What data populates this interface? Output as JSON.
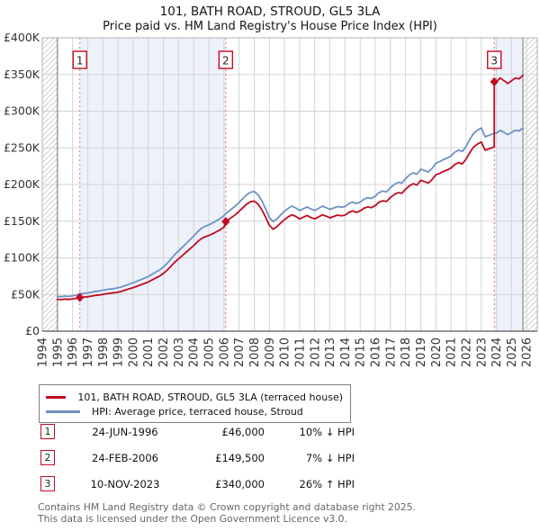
{
  "title": "101, BATH ROAD, STROUD, GL5 3LA",
  "subtitle": "Price paid vs. HM Land Registry's House Price Index (HPI)",
  "legend": {
    "items": [
      {
        "label": "101, BATH ROAD, STROUD, GL5 3LA (terraced house)",
        "color": "#c00b20"
      },
      {
        "label": "HPI: Average price, terraced house, Stroud",
        "color": "#6d92c4"
      }
    ]
  },
  "table": {
    "rows": [
      {
        "num": "1",
        "date": "24-JUN-1996",
        "price": "£46,000",
        "delta": "10% ↓ HPI"
      },
      {
        "num": "2",
        "date": "24-FEB-2006",
        "price": "£149,500",
        "delta": "7% ↓ HPI"
      },
      {
        "num": "3",
        "date": "10-NOV-2023",
        "price": "£340,000",
        "delta": "26% ↑ HPI"
      }
    ]
  },
  "footer": {
    "line1": "Contains HM Land Registry data © Crown copyright and database right 2025.",
    "line2": "This data is licensed under the Open Government Licence v3.0."
  },
  "chart_data": {
    "type": "line",
    "title": "101, BATH ROAD, STROUD, GL5 3LA — Price paid vs. HPI",
    "units": "GBP thousands",
    "xlim": [
      1994,
      2026.7
    ],
    "ylim": [
      0,
      400
    ],
    "data_start": 1995.0,
    "data_end": 2025.75,
    "grid": true,
    "x_ticks": [
      1994,
      1995,
      1996,
      1997,
      1998,
      1999,
      2000,
      2001,
      2002,
      2003,
      2004,
      2005,
      2006,
      2007,
      2008,
      2009,
      2010,
      2011,
      2012,
      2013,
      2014,
      2015,
      2016,
      2017,
      2018,
      2019,
      2020,
      2021,
      2022,
      2023,
      2024,
      2025,
      2026
    ],
    "y_ticks": [
      {
        "v": 0,
        "label": "£0"
      },
      {
        "v": 50,
        "label": "£50K"
      },
      {
        "v": 100,
        "label": "£100K"
      },
      {
        "v": 150,
        "label": "£150K"
      },
      {
        "v": 200,
        "label": "£200K"
      },
      {
        "v": 250,
        "label": "£250K"
      },
      {
        "v": 300,
        "label": "£300K"
      },
      {
        "v": 350,
        "label": "£350K"
      },
      {
        "v": 400,
        "label": "£400K"
      }
    ],
    "shaded_bands": [
      [
        1996.48,
        2006.12
      ],
      [
        2023.86,
        2025.75
      ]
    ],
    "colors": {
      "red": "#c00b20",
      "blue": "#6d92c4",
      "band": "#edf1fa",
      "dashed": "#e87272",
      "grid": "#d4d4d4",
      "border": "#b3b3b3",
      "boundary": "#777777",
      "hatch": "#cccccc",
      "axis": "#555555",
      "tick_text": "#333333"
    },
    "sales_markers": [
      {
        "label": "1",
        "year": 1996.48,
        "value": 46,
        "date": "24-JUN-1996",
        "note": "10% below HPI"
      },
      {
        "label": "2",
        "year": 2006.12,
        "value": 149.5,
        "date": "24-FEB-2006",
        "note": "7% below HPI"
      },
      {
        "label": "3",
        "year": 2023.86,
        "value": 340,
        "date": "10-NOV-2023",
        "note": "26% above HPI"
      }
    ],
    "series": [
      {
        "id": "hpi-line",
        "name": "HPI: Average price, terraced house, Stroud",
        "color": "#6d92c4",
        "points": [
          [
            1995.0,
            47.5
          ],
          [
            1995.25,
            47.0
          ],
          [
            1995.5,
            47.8
          ],
          [
            1995.75,
            47.4
          ],
          [
            1996.0,
            48.2
          ],
          [
            1996.25,
            49.0
          ],
          [
            1996.48,
            51.1
          ],
          [
            1996.75,
            51.6
          ],
          [
            1997.0,
            52.2
          ],
          [
            1997.25,
            53.2
          ],
          [
            1997.5,
            54.2
          ],
          [
            1997.75,
            54.8
          ],
          [
            1998.0,
            55.8
          ],
          [
            1998.25,
            56.8
          ],
          [
            1998.5,
            57.6
          ],
          [
            1998.75,
            58.2
          ],
          [
            1999.0,
            59.2
          ],
          [
            1999.25,
            60.5
          ],
          [
            1999.5,
            62.5
          ],
          [
            1999.75,
            64.2
          ],
          [
            2000.0,
            66.0
          ],
          [
            2000.25,
            68.0
          ],
          [
            2000.5,
            70.2
          ],
          [
            2000.75,
            72.3
          ],
          [
            2001.0,
            74.5
          ],
          [
            2001.25,
            77.5
          ],
          [
            2001.5,
            80.5
          ],
          [
            2001.75,
            83.5
          ],
          [
            2002.0,
            87.5
          ],
          [
            2002.25,
            92.5
          ],
          [
            2002.5,
            98.5
          ],
          [
            2002.75,
            104.5
          ],
          [
            2003.0,
            109.5
          ],
          [
            2003.25,
            114.5
          ],
          [
            2003.5,
            119.5
          ],
          [
            2003.75,
            124.5
          ],
          [
            2004.0,
            129.5
          ],
          [
            2004.25,
            135.5
          ],
          [
            2004.5,
            140.0
          ],
          [
            2004.75,
            143.0
          ],
          [
            2005.0,
            145.0
          ],
          [
            2005.25,
            147.5
          ],
          [
            2005.5,
            150.5
          ],
          [
            2005.75,
            153.5
          ],
          [
            2006.0,
            157.5
          ],
          [
            2006.12,
            160.5
          ],
          [
            2006.25,
            162.5
          ],
          [
            2006.5,
            166.5
          ],
          [
            2006.75,
            170.5
          ],
          [
            2007.0,
            175.5
          ],
          [
            2007.25,
            181.0
          ],
          [
            2007.5,
            186.0
          ],
          [
            2007.75,
            189.5
          ],
          [
            2008.0,
            190.5
          ],
          [
            2008.25,
            186.0
          ],
          [
            2008.5,
            178.0
          ],
          [
            2008.75,
            167.0
          ],
          [
            2009.0,
            155.0
          ],
          [
            2009.25,
            149.5
          ],
          [
            2009.5,
            153.0
          ],
          [
            2009.75,
            158.5
          ],
          [
            2010.0,
            163.5
          ],
          [
            2010.25,
            167.5
          ],
          [
            2010.5,
            170.5
          ],
          [
            2010.75,
            168.0
          ],
          [
            2011.0,
            164.5
          ],
          [
            2011.25,
            167.0
          ],
          [
            2011.5,
            169.5
          ],
          [
            2011.75,
            166.5
          ],
          [
            2012.0,
            164.5
          ],
          [
            2012.25,
            167.5
          ],
          [
            2012.5,
            170.5
          ],
          [
            2012.75,
            168.5
          ],
          [
            2013.0,
            166.0
          ],
          [
            2013.25,
            168.0
          ],
          [
            2013.5,
            170.0
          ],
          [
            2013.75,
            169.0
          ],
          [
            2014.0,
            170.0
          ],
          [
            2014.25,
            174.0
          ],
          [
            2014.5,
            176.0
          ],
          [
            2014.75,
            174.0
          ],
          [
            2015.0,
            176.0
          ],
          [
            2015.25,
            180.0
          ],
          [
            2015.5,
            182.0
          ],
          [
            2015.75,
            181.0
          ],
          [
            2016.0,
            184.0
          ],
          [
            2016.25,
            189.0
          ],
          [
            2016.5,
            191.0
          ],
          [
            2016.75,
            190.0
          ],
          [
            2017.0,
            196.0
          ],
          [
            2017.25,
            200.0
          ],
          [
            2017.5,
            203.0
          ],
          [
            2017.75,
            202.0
          ],
          [
            2018.0,
            208.0
          ],
          [
            2018.25,
            213.0
          ],
          [
            2018.5,
            216.0
          ],
          [
            2018.75,
            214.0
          ],
          [
            2019.0,
            221.0
          ],
          [
            2019.25,
            219.0
          ],
          [
            2019.5,
            217.0
          ],
          [
            2019.75,
            222.0
          ],
          [
            2020.0,
            229.0
          ],
          [
            2020.25,
            231.0
          ],
          [
            2020.5,
            234.0
          ],
          [
            2020.75,
            236.0
          ],
          [
            2021.0,
            239.0
          ],
          [
            2021.25,
            244.0
          ],
          [
            2021.5,
            247.0
          ],
          [
            2021.75,
            245.0
          ],
          [
            2022.0,
            252.0
          ],
          [
            2022.25,
            262.0
          ],
          [
            2022.5,
            270.0
          ],
          [
            2022.75,
            274.0
          ],
          [
            2023.0,
            277.0
          ],
          [
            2023.25,
            265.0
          ],
          [
            2023.5,
            267.0
          ],
          [
            2023.75,
            269.0
          ],
          [
            2023.86,
            270.0
          ],
          [
            2024.0,
            270.0
          ],
          [
            2024.25,
            274.0
          ],
          [
            2024.5,
            271.0
          ],
          [
            2024.75,
            268.0
          ],
          [
            2025.0,
            271.0
          ],
          [
            2025.25,
            274.0
          ],
          [
            2025.5,
            273.0
          ],
          [
            2025.75,
            277.0
          ]
        ]
      },
      {
        "id": "property-line",
        "name": "101, BATH ROAD, STROUD, GL5 3LA (terraced house)",
        "color": "#c00b20",
        "points": [
          [
            1995.0,
            43.5
          ],
          [
            1995.25,
            43.0
          ],
          [
            1995.5,
            43.8
          ],
          [
            1995.75,
            43.3
          ],
          [
            1996.0,
            44.0
          ],
          [
            1996.25,
            44.8
          ],
          [
            1996.48,
            46.0
          ],
          [
            1996.75,
            46.4
          ],
          [
            1997.0,
            47.0
          ],
          [
            1997.25,
            47.9
          ],
          [
            1997.5,
            48.8
          ],
          [
            1997.75,
            49.3
          ],
          [
            1998.0,
            50.2
          ],
          [
            1998.25,
            51.1
          ],
          [
            1998.5,
            51.8
          ],
          [
            1998.75,
            52.4
          ],
          [
            1999.0,
            53.3
          ],
          [
            1999.25,
            54.5
          ],
          [
            1999.5,
            56.3
          ],
          [
            1999.75,
            57.8
          ],
          [
            2000.0,
            59.4
          ],
          [
            2000.25,
            61.2
          ],
          [
            2000.5,
            63.2
          ],
          [
            2000.75,
            65.1
          ],
          [
            2001.0,
            67.1
          ],
          [
            2001.25,
            69.8
          ],
          [
            2001.5,
            72.5
          ],
          [
            2001.75,
            75.2
          ],
          [
            2002.0,
            78.8
          ],
          [
            2002.25,
            83.3
          ],
          [
            2002.5,
            88.7
          ],
          [
            2002.75,
            94.1
          ],
          [
            2003.0,
            98.6
          ],
          [
            2003.25,
            103.1
          ],
          [
            2003.5,
            107.6
          ],
          [
            2003.75,
            112.1
          ],
          [
            2004.0,
            116.6
          ],
          [
            2004.25,
            122.0
          ],
          [
            2004.5,
            126.0
          ],
          [
            2004.75,
            128.7
          ],
          [
            2005.0,
            130.5
          ],
          [
            2005.25,
            132.8
          ],
          [
            2005.5,
            135.5
          ],
          [
            2005.75,
            138.2
          ],
          [
            2006.0,
            141.8
          ],
          [
            2006.12,
            149.5
          ],
          [
            2006.25,
            151.3
          ],
          [
            2006.5,
            155.0
          ],
          [
            2006.75,
            158.7
          ],
          [
            2007.0,
            163.4
          ],
          [
            2007.25,
            168.5
          ],
          [
            2007.5,
            173.2
          ],
          [
            2007.75,
            176.4
          ],
          [
            2008.0,
            177.4
          ],
          [
            2008.25,
            173.2
          ],
          [
            2008.5,
            165.7
          ],
          [
            2008.75,
            155.5
          ],
          [
            2009.0,
            144.3
          ],
          [
            2009.25,
            139.2
          ],
          [
            2009.5,
            142.4
          ],
          [
            2009.75,
            147.6
          ],
          [
            2010.0,
            152.2
          ],
          [
            2010.25,
            155.9
          ],
          [
            2010.5,
            158.7
          ],
          [
            2010.75,
            156.4
          ],
          [
            2011.0,
            153.1
          ],
          [
            2011.25,
            155.5
          ],
          [
            2011.5,
            157.8
          ],
          [
            2011.75,
            155.0
          ],
          [
            2012.0,
            153.1
          ],
          [
            2012.25,
            155.9
          ],
          [
            2012.5,
            158.7
          ],
          [
            2012.75,
            156.9
          ],
          [
            2013.0,
            154.5
          ],
          [
            2013.25,
            156.4
          ],
          [
            2013.5,
            158.3
          ],
          [
            2013.75,
            157.3
          ],
          [
            2014.0,
            158.3
          ],
          [
            2014.25,
            162.0
          ],
          [
            2014.5,
            163.9
          ],
          [
            2014.75,
            162.0
          ],
          [
            2015.0,
            163.9
          ],
          [
            2015.25,
            167.6
          ],
          [
            2015.5,
            169.4
          ],
          [
            2015.75,
            168.5
          ],
          [
            2016.0,
            171.3
          ],
          [
            2016.25,
            176.0
          ],
          [
            2016.5,
            177.8
          ],
          [
            2016.75,
            176.9
          ],
          [
            2017.0,
            182.5
          ],
          [
            2017.25,
            186.2
          ],
          [
            2017.5,
            189.0
          ],
          [
            2017.75,
            188.1
          ],
          [
            2018.0,
            193.6
          ],
          [
            2018.25,
            198.3
          ],
          [
            2018.5,
            201.1
          ],
          [
            2018.75,
            199.2
          ],
          [
            2019.0,
            205.8
          ],
          [
            2019.25,
            203.9
          ],
          [
            2019.5,
            202.0
          ],
          [
            2019.75,
            206.7
          ],
          [
            2020.0,
            213.2
          ],
          [
            2020.25,
            215.1
          ],
          [
            2020.5,
            217.9
          ],
          [
            2020.75,
            219.7
          ],
          [
            2021.0,
            222.5
          ],
          [
            2021.25,
            227.2
          ],
          [
            2021.5,
            230.0
          ],
          [
            2021.75,
            228.1
          ],
          [
            2022.0,
            234.6
          ],
          [
            2022.25,
            243.9
          ],
          [
            2022.5,
            251.4
          ],
          [
            2022.75,
            255.1
          ],
          [
            2023.0,
            257.9
          ],
          [
            2023.25,
            246.7
          ],
          [
            2023.5,
            248.6
          ],
          [
            2023.75,
            250.4
          ],
          [
            2023.86,
            251.4
          ],
          [
            2023.86,
            340.0
          ],
          [
            2024.0,
            340.2
          ],
          [
            2024.25,
            345.2
          ],
          [
            2024.5,
            341.5
          ],
          [
            2024.75,
            337.7
          ],
          [
            2025.0,
            341.5
          ],
          [
            2025.25,
            345.2
          ],
          [
            2025.5,
            344.0
          ],
          [
            2025.75,
            349.0
          ]
        ]
      }
    ]
  }
}
